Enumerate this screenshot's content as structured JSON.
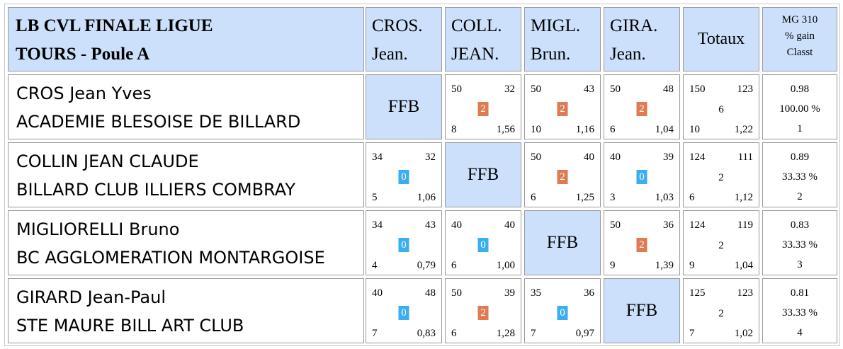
{
  "colors": {
    "header_bg": "#cce0fb",
    "win_badge": "#e07a52",
    "loss_badge": "#3aaeef",
    "border": "#9a9a9a"
  },
  "header": {
    "title_line1": "LB CVL FINALE LIGUE",
    "title_line2": "TOURS - Poule A",
    "columns": [
      {
        "line1": "CROS.",
        "line2": "Jean."
      },
      {
        "line1": "COLL.",
        "line2": "JEAN."
      },
      {
        "line1": "MIGL.",
        "line2": "Brun."
      },
      {
        "line1": "GIRA.",
        "line2": "Jean."
      }
    ],
    "totaux": "Totaux",
    "mg_line1": "MG 310",
    "mg_line2": "% gain",
    "mg_line3": "Classt"
  },
  "ffb_label": "FFB",
  "rows": [
    {
      "name": "CROS Jean Yves",
      "club": "ACADEMIE BLESOISE DE BILLARD",
      "matches": [
        null,
        {
          "points": "50",
          "opp_points": "32",
          "result": "2",
          "innings": "8",
          "avg": "1,56",
          "result_color": "win"
        },
        {
          "points": "50",
          "opp_points": "43",
          "result": "2",
          "innings": "10",
          "avg": "1,16",
          "result_color": "win"
        },
        {
          "points": "50",
          "opp_points": "48",
          "result": "2",
          "innings": "6",
          "avg": "1,04",
          "result_color": "win"
        }
      ],
      "totals": {
        "points": "150",
        "opp_points": "123",
        "match_points": "6",
        "innings": "10",
        "avg": "1,22"
      },
      "mg": {
        "value": "0.98",
        "pct": "100.00 %",
        "rank": "1"
      }
    },
    {
      "name": "COLLIN JEAN CLAUDE",
      "club": "BILLARD CLUB ILLIERS COMBRAY",
      "matches": [
        {
          "points": "34",
          "opp_points": "32",
          "result": "0",
          "innings": "5",
          "avg": "1,06",
          "result_color": "loss"
        },
        null,
        {
          "points": "50",
          "opp_points": "40",
          "result": "2",
          "innings": "6",
          "avg": "1,25",
          "result_color": "win"
        },
        {
          "points": "40",
          "opp_points": "39",
          "result": "0",
          "innings": "3",
          "avg": "1,03",
          "result_color": "loss"
        }
      ],
      "totals": {
        "points": "124",
        "opp_points": "111",
        "match_points": "2",
        "innings": "6",
        "avg": "1,12"
      },
      "mg": {
        "value": "0.89",
        "pct": "33.33 %",
        "rank": "2"
      }
    },
    {
      "name": "MIGLIORELLI Bruno",
      "club": "BC AGGLOMERATION MONTARGOISE",
      "matches": [
        {
          "points": "34",
          "opp_points": "43",
          "result": "0",
          "innings": "4",
          "avg": "0,79",
          "result_color": "loss"
        },
        {
          "points": "40",
          "opp_points": "40",
          "result": "0",
          "innings": "6",
          "avg": "1,00",
          "result_color": "loss"
        },
        null,
        {
          "points": "50",
          "opp_points": "36",
          "result": "2",
          "innings": "9",
          "avg": "1,39",
          "result_color": "win"
        }
      ],
      "totals": {
        "points": "124",
        "opp_points": "119",
        "match_points": "2",
        "innings": "9",
        "avg": "1,04"
      },
      "mg": {
        "value": "0.83",
        "pct": "33.33 %",
        "rank": "3"
      }
    },
    {
      "name": "GIRARD Jean-Paul",
      "club": "STE MAURE BILL ART CLUB",
      "matches": [
        {
          "points": "40",
          "opp_points": "48",
          "result": "0",
          "innings": "7",
          "avg": "0,83",
          "result_color": "loss"
        },
        {
          "points": "50",
          "opp_points": "39",
          "result": "2",
          "innings": "6",
          "avg": "1,28",
          "result_color": "win"
        },
        {
          "points": "35",
          "opp_points": "36",
          "result": "0",
          "innings": "7",
          "avg": "0,97",
          "result_color": "loss"
        },
        null
      ],
      "totals": {
        "points": "125",
        "opp_points": "123",
        "match_points": "2",
        "innings": "7",
        "avg": "1,02"
      },
      "mg": {
        "value": "0.81",
        "pct": "33.33 %",
        "rank": "4"
      }
    }
  ]
}
